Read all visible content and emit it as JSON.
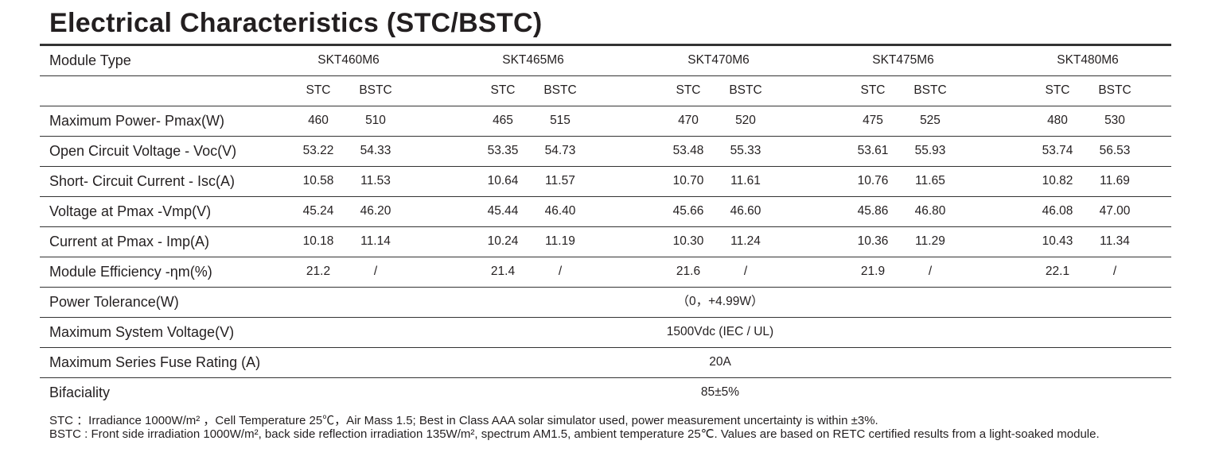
{
  "title": "Electrical Characteristics (STC/BSTC)",
  "table": {
    "header": {
      "label": "Module Type",
      "models": [
        "SKT460M6",
        "SKT465M6",
        "SKT470M6",
        "SKT475M6",
        "SKT480M6"
      ]
    },
    "subheader": [
      [
        "STC",
        "BSTC"
      ],
      [
        "STC",
        "BSTC"
      ],
      [
        "STC",
        "BSTC"
      ],
      [
        "STC",
        "BSTC"
      ],
      [
        "STC",
        "BSTC"
      ]
    ],
    "rows": [
      {
        "label": "Maximum Power- Pmax(W)",
        "values": [
          [
            "460",
            "510"
          ],
          [
            "465",
            "515"
          ],
          [
            "470",
            "520"
          ],
          [
            "475",
            "525"
          ],
          [
            "480",
            "530"
          ]
        ]
      },
      {
        "label": "Open Circuit Voltage - Voc(V)",
        "values": [
          [
            "53.22",
            "54.33"
          ],
          [
            "53.35",
            "54.73"
          ],
          [
            "53.48",
            "55.33"
          ],
          [
            "53.61",
            "55.93"
          ],
          [
            "53.74",
            "56.53"
          ]
        ]
      },
      {
        "label": "Short- Circuit Current - Isc(A)",
        "values": [
          [
            "10.58",
            "11.53"
          ],
          [
            "10.64",
            "11.57"
          ],
          [
            "10.70",
            "11.61"
          ],
          [
            "10.76",
            "11.65"
          ],
          [
            "10.82",
            "11.69"
          ]
        ]
      },
      {
        "label": "Voltage at Pmax -Vmp(V)",
        "values": [
          [
            "45.24",
            "46.20"
          ],
          [
            "45.44",
            "46.40"
          ],
          [
            "45.66",
            "46.60"
          ],
          [
            "45.86",
            "46.80"
          ],
          [
            "46.08",
            "47.00"
          ]
        ]
      },
      {
        "label": "Current at Pmax  - Imp(A)",
        "values": [
          [
            "10.18",
            "11.14"
          ],
          [
            "10.24",
            "11.19"
          ],
          [
            "10.30",
            "11.24"
          ],
          [
            "10.36",
            "11.29"
          ],
          [
            "10.43",
            "11.34"
          ]
        ]
      },
      {
        "label": "Module Efficiency -ηm(%)",
        "values": [
          [
            "21.2",
            "/"
          ],
          [
            "21.4",
            "/"
          ],
          [
            "21.6",
            "/"
          ],
          [
            "21.9",
            "/"
          ],
          [
            "22.1",
            "/"
          ]
        ]
      }
    ],
    "spanning_rows": [
      {
        "label": "Power Tolerance(W)",
        "value": "（0，+4.99W）"
      },
      {
        "label": "Maximum System Voltage(V)",
        "value": "1500Vdc (IEC / UL)"
      },
      {
        "label": "Maximum Series Fuse Rating (A)",
        "value": "20A"
      },
      {
        "label": "Bifaciality",
        "value": "85±5%"
      }
    ]
  },
  "notes": [
    "STC ：Irradiance 1000W/m²  ，Cell Temperature 25℃，Air Mass 1.5; Best in Class AAA solar simulator used, power measurement uncertainty is within ±3%.",
    "BSTC : Front side irradiation 1000W/m², back side reflection irradiation 135W/m², spectrum AM1.5, ambient temperature 25℃. Values are based on RETC certified results from a light-soaked module."
  ]
}
